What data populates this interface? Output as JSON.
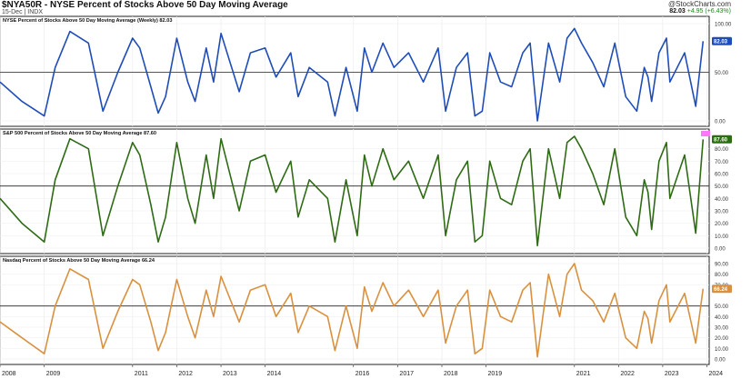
{
  "header": {
    "title": "$NYA50R - NYSE Percent of Stocks Above 50 Day Moving Average",
    "subtitle": "15-Dec | INDX",
    "logo": "@StockCharts.com",
    "last_value": "82.03",
    "change": "+4.95 (+6.43%)"
  },
  "colors": {
    "nyse": "#1f4db8",
    "sp500": "#2e6b14",
    "nasdaq": "#d9913f",
    "sp_marker": "#ff77ff"
  },
  "chart_data": [
    {
      "type": "line",
      "label": "NYSE Percent of Stocks Above 50 Day Moving Average (Weekly) 82.03",
      "series": [
        {
          "name": "NYSE Percent of Stocks Above 50 Day Moving Average (Weekly)",
          "last": "82.03"
        }
      ],
      "ylim": [
        0,
        100
      ],
      "yticks": [
        "100.00",
        "50.00",
        "0.00"
      ],
      "reference_line": 50,
      "x": [
        "2008-01",
        "2008-07",
        "2009-01",
        "2009-04",
        "2009-08",
        "2010-01",
        "2010-05",
        "2010-09",
        "2011-01",
        "2011-03",
        "2011-06",
        "2011-08",
        "2011-10",
        "2012-01",
        "2012-04",
        "2012-06",
        "2012-09",
        "2012-11",
        "2013-01",
        "2013-06",
        "2013-09",
        "2014-01",
        "2014-04",
        "2014-08",
        "2014-10",
        "2015-01",
        "2015-06",
        "2015-08",
        "2015-11",
        "2016-02",
        "2016-04",
        "2016-06",
        "2016-09",
        "2016-12",
        "2017-04",
        "2017-08",
        "2017-12",
        "2018-02",
        "2018-05",
        "2018-08",
        "2018-10",
        "2018-12",
        "2019-02",
        "2019-05",
        "2019-08",
        "2019-11",
        "2020-01",
        "2020-03",
        "2020-06",
        "2020-09",
        "2020-11",
        "2021-01",
        "2021-03",
        "2021-06",
        "2021-09",
        "2021-12",
        "2022-03",
        "2022-06",
        "2022-08",
        "2022-09",
        "2022-10",
        "2022-12",
        "2023-02",
        "2023-03",
        "2023-07",
        "2023-10",
        "2023-12"
      ],
      "values": [
        40,
        20,
        5,
        55,
        92,
        80,
        10,
        50,
        85,
        75,
        35,
        8,
        25,
        85,
        40,
        20,
        75,
        40,
        90,
        30,
        70,
        75,
        45,
        70,
        25,
        55,
        40,
        5,
        55,
        10,
        75,
        50,
        80,
        55,
        70,
        40,
        75,
        10,
        55,
        70,
        5,
        10,
        70,
        40,
        35,
        70,
        80,
        0,
        80,
        40,
        85,
        95,
        80,
        60,
        35,
        80,
        25,
        10,
        55,
        45,
        20,
        70,
        85,
        40,
        70,
        15,
        82
      ]
    },
    {
      "type": "line",
      "label": "S&P 500 Percent of Stocks Above 50 Day Moving Average 87.60",
      "series": [
        {
          "name": "S&P 500 Percent of Stocks Above 50 Day Moving Average",
          "last": "87.60"
        }
      ],
      "ylim": [
        0,
        90
      ],
      "yticks": [
        "87.60",
        "80.00",
        "70.00",
        "60.00",
        "50.00",
        "40.00",
        "30.00",
        "20.00",
        "10.00",
        "0.00"
      ],
      "reference_line": 50,
      "x": [
        "2008-01",
        "2008-07",
        "2009-01",
        "2009-04",
        "2009-08",
        "2010-01",
        "2010-05",
        "2010-09",
        "2011-01",
        "2011-03",
        "2011-06",
        "2011-08",
        "2011-10",
        "2012-01",
        "2012-04",
        "2012-06",
        "2012-09",
        "2012-11",
        "2013-01",
        "2013-06",
        "2013-09",
        "2014-01",
        "2014-04",
        "2014-08",
        "2014-10",
        "2015-01",
        "2015-06",
        "2015-08",
        "2015-11",
        "2016-02",
        "2016-04",
        "2016-06",
        "2016-09",
        "2016-12",
        "2017-04",
        "2017-08",
        "2017-12",
        "2018-02",
        "2018-05",
        "2018-08",
        "2018-10",
        "2018-12",
        "2019-02",
        "2019-05",
        "2019-08",
        "2019-11",
        "2020-01",
        "2020-03",
        "2020-06",
        "2020-09",
        "2020-11",
        "2021-01",
        "2021-03",
        "2021-06",
        "2021-09",
        "2021-12",
        "2022-03",
        "2022-06",
        "2022-08",
        "2022-09",
        "2022-10",
        "2022-12",
        "2023-02",
        "2023-03",
        "2023-07",
        "2023-10",
        "2023-12"
      ],
      "values": [
        40,
        20,
        5,
        55,
        88,
        80,
        10,
        50,
        85,
        75,
        35,
        5,
        25,
        85,
        40,
        20,
        75,
        40,
        88,
        30,
        70,
        75,
        45,
        70,
        25,
        55,
        40,
        5,
        55,
        10,
        75,
        50,
        80,
        55,
        70,
        40,
        75,
        10,
        55,
        70,
        5,
        10,
        70,
        40,
        35,
        70,
        80,
        2,
        80,
        40,
        85,
        90,
        80,
        60,
        35,
        80,
        25,
        10,
        55,
        45,
        15,
        70,
        85,
        40,
        75,
        12,
        87.6
      ]
    },
    {
      "type": "line",
      "label": "Nasdaq Percent of Stocks Above 50 Day Moving Average 66.24",
      "series": [
        {
          "name": "Nasdaq Percent of Stocks Above 50 Day Moving Average",
          "last": "66.24"
        }
      ],
      "ylim": [
        0,
        90
      ],
      "yticks": [
        "90.00",
        "80.00",
        "70.00",
        "66.24",
        "50.00",
        "40.00",
        "30.00",
        "20.00",
        "10.00",
        "0.00"
      ],
      "reference_line": 50,
      "x": [
        "2008-01",
        "2008-07",
        "2009-01",
        "2009-04",
        "2009-08",
        "2010-01",
        "2010-05",
        "2010-09",
        "2011-01",
        "2011-03",
        "2011-06",
        "2011-08",
        "2011-10",
        "2012-01",
        "2012-04",
        "2012-06",
        "2012-09",
        "2012-11",
        "2013-01",
        "2013-06",
        "2013-09",
        "2014-01",
        "2014-04",
        "2014-08",
        "2014-10",
        "2015-01",
        "2015-06",
        "2015-08",
        "2015-11",
        "2016-02",
        "2016-04",
        "2016-06",
        "2016-09",
        "2016-12",
        "2017-04",
        "2017-08",
        "2017-12",
        "2018-02",
        "2018-05",
        "2018-08",
        "2018-10",
        "2018-12",
        "2019-02",
        "2019-05",
        "2019-08",
        "2019-11",
        "2020-01",
        "2020-03",
        "2020-06",
        "2020-09",
        "2020-11",
        "2021-01",
        "2021-03",
        "2021-06",
        "2021-09",
        "2021-12",
        "2022-03",
        "2022-06",
        "2022-08",
        "2022-09",
        "2022-10",
        "2022-12",
        "2023-02",
        "2023-03",
        "2023-07",
        "2023-10",
        "2023-12"
      ],
      "values": [
        35,
        20,
        5,
        50,
        85,
        75,
        10,
        45,
        75,
        70,
        35,
        8,
        25,
        75,
        40,
        20,
        65,
        40,
        78,
        35,
        65,
        70,
        40,
        62,
        25,
        50,
        40,
        8,
        50,
        10,
        68,
        45,
        72,
        50,
        65,
        40,
        65,
        15,
        50,
        65,
        5,
        10,
        65,
        40,
        35,
        65,
        72,
        2,
        80,
        40,
        80,
        90,
        65,
        55,
        35,
        62,
        20,
        10,
        45,
        38,
        15,
        55,
        70,
        35,
        62,
        15,
        66.24
      ]
    }
  ],
  "x_axis": {
    "labels": [
      "2008",
      "2009",
      "2011",
      "2012",
      "2013",
      "2014",
      "2016",
      "2017",
      "2018",
      "2019",
      "2021",
      "2022",
      "2023",
      "2024"
    ]
  }
}
